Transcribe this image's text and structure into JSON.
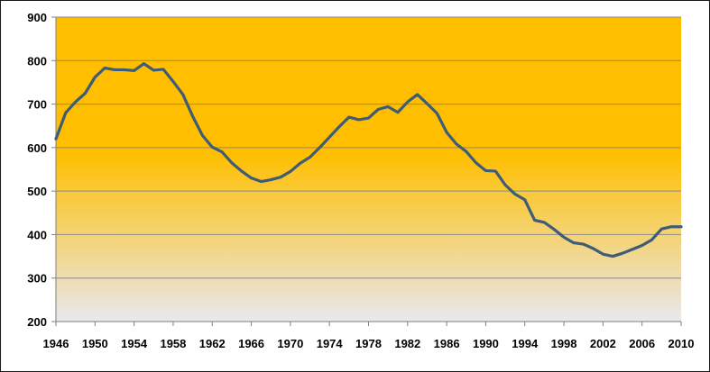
{
  "chart_data": {
    "type": "line",
    "title": "",
    "xlabel": "",
    "ylabel": "",
    "xlim": [
      1946,
      2010
    ],
    "ylim": [
      200,
      900
    ],
    "x_ticks": [
      "1946",
      "1950",
      "1954",
      "1958",
      "1962",
      "1966",
      "1970",
      "1974",
      "1978",
      "1982",
      "1986",
      "1990",
      "1994",
      "1998",
      "2002",
      "2006",
      "2010"
    ],
    "y_ticks": [
      "200",
      "300",
      "400",
      "500",
      "600",
      "700",
      "800",
      "900"
    ],
    "grid": "horizontal",
    "legend": "none",
    "colors": {
      "background_top": "#FFBF00",
      "background_bottom": "#E8E8F0",
      "line": "#3E5C78",
      "grid": "#8A8A8A"
    },
    "series": [
      {
        "x": [
          1946,
          1947,
          1948,
          1949,
          1950,
          1951,
          1952,
          1953,
          1954,
          1955,
          1956,
          1957,
          1958,
          1959,
          1960,
          1961,
          1962,
          1963,
          1964,
          1965,
          1966,
          1967,
          1968,
          1969,
          1970,
          1971,
          1972,
          1973,
          1974,
          1975,
          1976,
          1977,
          1978,
          1979,
          1980,
          1981,
          1982,
          1983,
          1984,
          1985,
          1986,
          1987,
          1988,
          1989,
          1990,
          1991,
          1992,
          1993,
          1994,
          1995,
          1996,
          1997,
          1998,
          1999,
          2000,
          2001,
          2002,
          2003,
          2004,
          2005,
          2006,
          2007,
          2008,
          2009,
          2010
        ],
        "values": [
          620,
          680,
          705,
          725,
          762,
          783,
          779,
          779,
          777,
          793,
          778,
          780,
          752,
          722,
          672,
          628,
          601,
          590,
          565,
          546,
          530,
          522,
          526,
          532,
          545,
          564,
          578,
          600,
          624,
          648,
          670,
          664,
          668,
          688,
          694,
          681,
          705,
          722,
          701,
          679,
          635,
          608,
          591,
          565,
          547,
          546,
          514,
          493,
          480,
          433,
          428,
          412,
          394,
          381,
          378,
          368,
          355,
          350,
          357,
          366,
          375,
          388,
          413,
          418,
          418
        ]
      }
    ]
  }
}
